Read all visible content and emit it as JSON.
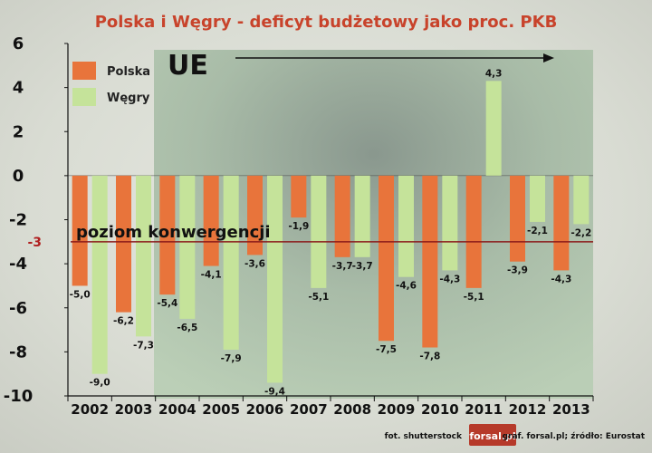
{
  "chart_data": {
    "type": "bar",
    "title": "Polska i Węgry - deficyt budżetowy jako proc. PKB",
    "categories": [
      "2002",
      "2003",
      "2004",
      "2005",
      "2006",
      "2007",
      "2008",
      "2009",
      "2010",
      "2011",
      "2012",
      "2013"
    ],
    "series": [
      {
        "name": "Polska",
        "color": "#e8743b",
        "values": [
          -5.0,
          -6.2,
          -5.4,
          -4.1,
          -3.6,
          -1.9,
          -3.7,
          -7.5,
          -7.8,
          -5.1,
          -3.9,
          -4.3
        ]
      },
      {
        "name": "Węgry",
        "color": "#c5e39a",
        "values": [
          -9.0,
          -7.3,
          -6.5,
          -7.9,
          -9.4,
          -5.1,
          -3.7,
          -4.6,
          -4.3,
          4.3,
          -2.1,
          -2.2
        ]
      }
    ],
    "value_labels": {
      "Polska": [
        "-5,0",
        "-6,2",
        "-5,4",
        "-4,1",
        "-3,6",
        "-1,9",
        "-3,7",
        "-7,5",
        "-7,8",
        "-5,1",
        "-3,9",
        "-4,3"
      ],
      "Węgry": [
        "-9,0",
        "-7,3",
        "-6,5",
        "-7,9",
        "-9,4",
        "-5,1",
        "-3,7",
        "-4,6",
        "-4,3",
        "4,3",
        "-2,1",
        "-2,2"
      ]
    },
    "ylim": [
      -10,
      6
    ],
    "yticks": [
      "6",
      "4",
      "2",
      "0",
      "-2",
      "-4",
      "-6",
      "-8",
      "-10"
    ],
    "reference_line": {
      "value": -3,
      "label": "poziom konwergencji",
      "tick_label": "-3",
      "color": "#8b1a1a"
    },
    "eu_annotation": {
      "label": "UE",
      "from_category": "2004"
    },
    "legend_position": "top-left"
  },
  "footer": {
    "photo_credit": "fot. shutterstock",
    "logo": "forsal.pl",
    "source": "graf. forsal.pl;  źródło: Eurostat"
  }
}
